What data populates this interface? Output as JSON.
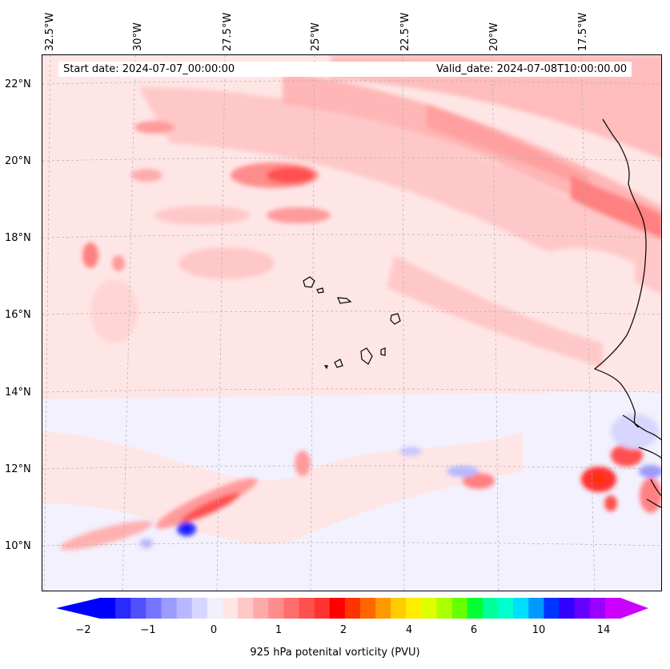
{
  "map": {
    "lon_labels": [
      "32.5°W",
      "30°W",
      "27.5°W",
      "25°W",
      "22.5°W",
      "20°W",
      "17.5°W"
    ],
    "lat_labels": [
      "22°N",
      "20°N",
      "18°N",
      "16°N",
      "14°N",
      "12°N",
      "10°N"
    ],
    "start_date": "Start date: 2024-07-07_00:00:00",
    "valid_date": "Valid_date: 2024-07-08T10:00:00.00",
    "extent": {
      "lon_min": -33.0,
      "lon_max": -15.2,
      "lat_min": 8.9,
      "lat_max": 22.8
    },
    "coastline_color": "#000000",
    "gridline_color": "#b0b0b0"
  },
  "colorbar": {
    "label": "925 hPa potenital vorticity (PVU)",
    "ticks": [
      "−2",
      "−1",
      "0",
      "1",
      "2",
      "4",
      "6",
      "10",
      "14"
    ],
    "colors": [
      "#0000ff",
      "#2a2aff",
      "#5050ff",
      "#7575ff",
      "#9a9aff",
      "#b8b8ff",
      "#d6d6ff",
      "#f0f0ff",
      "#ffe6e6",
      "#ffc8c8",
      "#ffaaaa",
      "#ff8c8c",
      "#ff6e6e",
      "#ff5050",
      "#ff3232",
      "#ff0000",
      "#ff3300",
      "#ff6600",
      "#ff9900",
      "#ffcc00",
      "#ffee00",
      "#ddff00",
      "#aaff00",
      "#66ff00",
      "#00ff33",
      "#00ff99",
      "#00ffcc",
      "#00ddff",
      "#0099ff",
      "#0033ff",
      "#3300ff",
      "#6600ff",
      "#9900ff",
      "#cc00ff"
    ],
    "extend_low_color": "#0000ff",
    "extend_high_color": "#cc00ff"
  }
}
